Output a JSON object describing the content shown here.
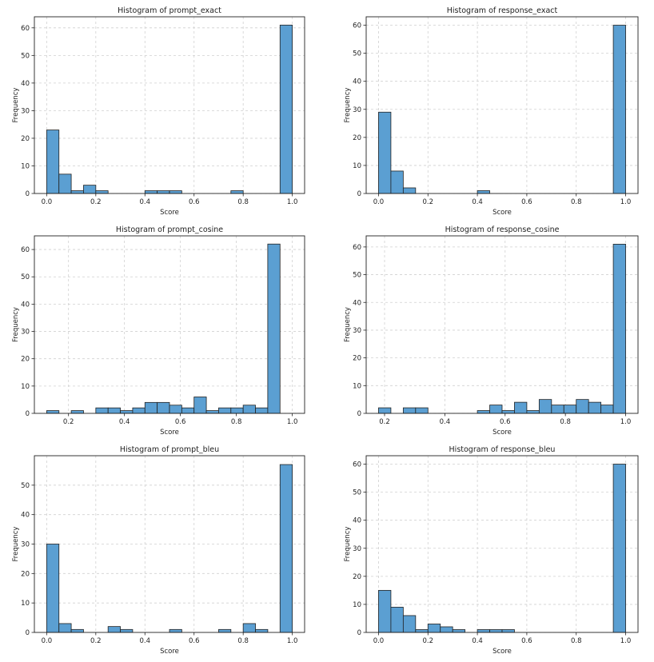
{
  "figure": {
    "bar_color": "#5b9fd2",
    "bar_edge_color": "#222222",
    "grid": true,
    "grid_style": "dashed"
  },
  "chart_data": [
    {
      "type": "bar",
      "title": "Histogram of prompt_exact",
      "xlabel": "Score",
      "ylabel": "Frequency",
      "x_range": [
        0.0,
        1.0
      ],
      "bins": 20,
      "values": [
        23,
        7,
        1,
        3,
        1,
        0,
        0,
        0,
        1,
        1,
        1,
        0,
        0,
        0,
        0,
        1,
        0,
        0,
        0,
        61
      ],
      "xlim": [
        -0.05,
        1.05
      ],
      "ylim": [
        0,
        64
      ],
      "xticks": [
        0.0,
        0.2,
        0.4,
        0.6,
        0.8,
        1.0
      ],
      "xtick_labels": [
        "0.0",
        "0.2",
        "0.4",
        "0.6",
        "0.8",
        "1.0"
      ],
      "yticks": [
        0,
        10,
        20,
        30,
        40,
        50,
        60
      ],
      "ytick_labels": [
        "0",
        "10",
        "20",
        "30",
        "40",
        "50",
        "60"
      ]
    },
    {
      "type": "bar",
      "title": "Histogram of response_exact",
      "xlabel": "Score",
      "ylabel": "Frequency",
      "x_range": [
        0.0,
        1.0
      ],
      "bins": 20,
      "values": [
        29,
        8,
        2,
        0,
        0,
        0,
        0,
        0,
        1,
        0,
        0,
        0,
        0,
        0,
        0,
        0,
        0,
        0,
        0,
        60
      ],
      "xlim": [
        -0.05,
        1.05
      ],
      "ylim": [
        0,
        63
      ],
      "xticks": [
        0.0,
        0.2,
        0.4,
        0.6,
        0.8,
        1.0
      ],
      "xtick_labels": [
        "0.0",
        "0.2",
        "0.4",
        "0.6",
        "0.8",
        "1.0"
      ],
      "yticks": [
        0,
        10,
        20,
        30,
        40,
        50,
        60
      ],
      "ytick_labels": [
        "0",
        "10",
        "20",
        "30",
        "40",
        "50",
        "60"
      ]
    },
    {
      "type": "bar",
      "title": "Histogram of prompt_cosine",
      "xlabel": "Score",
      "ylabel": "Frequency",
      "x_range": [
        0.122,
        1.0
      ],
      "bins": 20,
      "values": [
        1,
        0,
        1,
        0,
        2,
        2,
        1,
        2,
        4,
        4,
        3,
        2,
        6,
        1,
        2,
        2,
        3,
        2,
        62,
        0
      ],
      "xlim": [
        0.078,
        1.044
      ],
      "ylim": [
        0,
        65
      ],
      "xticks": [
        0.2,
        0.4,
        0.6,
        0.8,
        1.0
      ],
      "xtick_labels": [
        "0.2",
        "0.4",
        "0.6",
        "0.8",
        "1.0"
      ],
      "yticks": [
        0,
        10,
        20,
        30,
        40,
        50,
        60
      ],
      "ytick_labels": [
        "0",
        "10",
        "20",
        "30",
        "40",
        "50",
        "60"
      ]
    },
    {
      "type": "bar",
      "title": "Histogram of response_cosine",
      "xlabel": "Score",
      "ylabel": "Frequency",
      "x_range": [
        0.18,
        1.0
      ],
      "bins": 20,
      "values": [
        2,
        0,
        2,
        2,
        0,
        0,
        0,
        0,
        1,
        3,
        1,
        4,
        1,
        5,
        3,
        3,
        5,
        4,
        3,
        61
      ],
      "xlim": [
        0.139,
        1.041
      ],
      "ylim": [
        0,
        64
      ],
      "xticks": [
        0.2,
        0.4,
        0.6,
        0.8,
        1.0
      ],
      "xtick_labels": [
        "0.2",
        "0.4",
        "0.6",
        "0.8",
        "1.0"
      ],
      "yticks": [
        0,
        10,
        20,
        30,
        40,
        50,
        60
      ],
      "ytick_labels": [
        "0",
        "10",
        "20",
        "30",
        "40",
        "50",
        "60"
      ]
    },
    {
      "type": "bar",
      "title": "Histogram of prompt_bleu",
      "xlabel": "Score",
      "ylabel": "Frequency",
      "x_range": [
        0.0,
        1.0
      ],
      "bins": 20,
      "values": [
        30,
        3,
        1,
        0,
        0,
        2,
        1,
        0,
        0,
        0,
        1,
        0,
        0,
        0,
        1,
        0,
        3,
        1,
        0,
        57
      ],
      "xlim": [
        -0.05,
        1.05
      ],
      "ylim": [
        0,
        60
      ],
      "xticks": [
        0.0,
        0.2,
        0.4,
        0.6,
        0.8,
        1.0
      ],
      "xtick_labels": [
        "0.0",
        "0.2",
        "0.4",
        "0.6",
        "0.8",
        "1.0"
      ],
      "yticks": [
        0,
        10,
        20,
        30,
        40,
        50
      ],
      "ytick_labels": [
        "0",
        "10",
        "20",
        "30",
        "40",
        "50"
      ]
    },
    {
      "type": "bar",
      "title": "Histogram of response_bleu",
      "xlabel": "Score",
      "ylabel": "Frequency",
      "x_range": [
        0.0,
        1.0
      ],
      "bins": 20,
      "values": [
        15,
        9,
        6,
        1,
        3,
        2,
        1,
        0,
        1,
        1,
        1,
        0,
        0,
        0,
        0,
        0,
        0,
        0,
        0,
        60
      ],
      "xlim": [
        -0.05,
        1.05
      ],
      "ylim": [
        0,
        63
      ],
      "xticks": [
        0.0,
        0.2,
        0.4,
        0.6,
        0.8,
        1.0
      ],
      "xtick_labels": [
        "0.0",
        "0.2",
        "0.4",
        "0.6",
        "0.8",
        "1.0"
      ],
      "yticks": [
        0,
        10,
        20,
        30,
        40,
        50,
        60
      ],
      "ytick_labels": [
        "0",
        "10",
        "20",
        "30",
        "40",
        "50",
        "60"
      ]
    }
  ]
}
